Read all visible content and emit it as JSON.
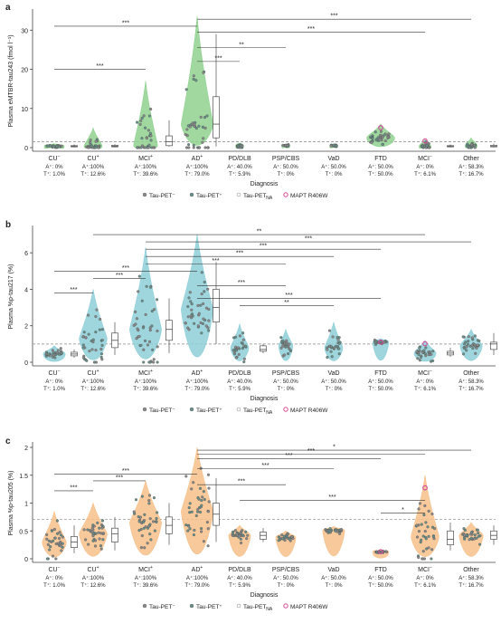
{
  "colors": {
    "green": "#8fd18f",
    "teal": "#8ecfd8",
    "orange": "#f6c08a",
    "point_grey": "#8a8a8a",
    "mapt": "#d4479a",
    "dashed": "#888888"
  },
  "x_title": "Diagnosis",
  "groups": [
    {
      "label": "CU",
      "sup": "−",
      "a_line": "A⁺: 0%",
      "t_line": "T⁺: 1.0%"
    },
    {
      "label": "CU",
      "sup": "+",
      "a_line": "A⁺:100%",
      "t_line": "T⁺: 12.6%"
    },
    {
      "label": "MCI",
      "sup": "+",
      "a_line": "A⁺:100%",
      "t_line": "T⁺: 39.6%"
    },
    {
      "label": "AD",
      "sup": "+",
      "a_line": "A⁺:100%",
      "t_line": "T⁺: 79.0%"
    },
    {
      "label": "PD/DLB",
      "sup": "",
      "a_line": "A⁺: 40.0%",
      "t_line": "T⁺: 5.9%"
    },
    {
      "label": "PSP/CBS",
      "sup": "",
      "a_line": "A⁺: 50.0%",
      "t_line": "T⁺: 0%"
    },
    {
      "label": "VaD",
      "sup": "",
      "a_line": "A⁺: 50.0%",
      "t_line": "T⁺: 0%"
    },
    {
      "label": "FTD",
      "sup": "",
      "a_line": "A⁺: 50.0%",
      "t_line": "T⁺: 50.0%"
    },
    {
      "label": "MCI",
      "sup": "−",
      "a_line": "A⁺: 0%",
      "t_line": "T⁺: 6.1%"
    },
    {
      "label": "Other",
      "sup": "",
      "a_line": "A⁺: 58.3%",
      "t_line": "T⁺: 16.7%"
    }
  ],
  "legend": [
    {
      "key": "neg",
      "text": "Tau-PET⁻"
    },
    {
      "key": "pos",
      "text": "Tau-PET⁺"
    },
    {
      "key": "na",
      "text": "Tau-PET",
      "sub": "NA"
    },
    {
      "key": "mapt",
      "text": "MAPT R406W"
    }
  ],
  "chart_data": [
    {
      "type": "violin",
      "panel": "a",
      "ylabel": "Plasma eMTBR-tau243 (fmol l⁻¹)",
      "ylim": [
        0,
        34
      ],
      "yticks": [
        0,
        10,
        20,
        30
      ],
      "threshold": 1.5,
      "fill": "green",
      "violins": [
        {
          "group": 0,
          "median": 0.3,
          "max": 1.0,
          "width": 0.5
        },
        {
          "group": 1,
          "median": 0.4,
          "max": 5.0,
          "width": 0.45
        },
        {
          "group": 2,
          "median": 0.6,
          "max": 17.0,
          "width": 0.6
        },
        {
          "group": 3,
          "median": 6.0,
          "max": 33.5,
          "width": 0.8
        },
        {
          "group": 4,
          "median": 0.4,
          "max": 1.2,
          "width": 0.2
        },
        {
          "group": 5,
          "median": 0.5,
          "max": 0.9,
          "width": 0.2
        },
        {
          "group": 6,
          "median": 0.5,
          "max": 0.9,
          "width": 0.2
        },
        {
          "group": 7,
          "median": 2.5,
          "max": 6.0,
          "width": 0.7
        },
        {
          "group": 8,
          "median": 0.3,
          "max": 2.0,
          "width": 0.3
        },
        {
          "group": 9,
          "median": 0.5,
          "max": 2.5,
          "width": 0.3
        }
      ],
      "boxes_na": [
        {
          "after": 0,
          "q1": 0.2,
          "med": 0.3,
          "q3": 0.5,
          "lo": 0.1,
          "hi": 0.8
        },
        {
          "after": 1,
          "q1": 0.2,
          "med": 0.35,
          "q3": 0.6,
          "lo": 0.1,
          "hi": 0.9
        },
        {
          "after": 2,
          "q1": 0.5,
          "med": 1.5,
          "q3": 3.0,
          "lo": 0.2,
          "hi": 7.0
        },
        {
          "after": 3,
          "q1": 2.5,
          "med": 6.0,
          "q3": 13.0,
          "lo": 0.3,
          "hi": 29.0
        },
        {
          "after": 8,
          "q1": 0.2,
          "med": 0.3,
          "q3": 0.5,
          "lo": 0.1,
          "hi": 0.8
        },
        {
          "after": 9,
          "q1": 0.2,
          "med": 0.3,
          "q3": 0.6,
          "lo": 0.1,
          "hi": 1.0
        }
      ],
      "brackets": [
        {
          "from": 0,
          "to": 3,
          "level": 31.0,
          "label": "***"
        },
        {
          "from": 3,
          "to": 9,
          "level": 32.8,
          "label": "***"
        },
        {
          "from": 3,
          "to": 8,
          "level": 29.5,
          "label": "***"
        },
        {
          "from": 3,
          "to": 5,
          "level": 25.5,
          "label": "**"
        },
        {
          "from": 3,
          "to": 4,
          "level": 22.0,
          "label": "***"
        },
        {
          "from": 0,
          "to": 2,
          "level": 20.0,
          "label": "***"
        }
      ]
    },
    {
      "type": "violin",
      "panel": "b",
      "ylabel": "Plasma %p-tau217 (%)",
      "ylim": [
        0,
        7.2
      ],
      "yticks": [
        0,
        2,
        4,
        6
      ],
      "threshold": 1.0,
      "fill": "teal",
      "violins": [
        {
          "group": 0,
          "median": 0.45,
          "max": 0.9,
          "width": 0.55
        },
        {
          "group": 1,
          "median": 1.3,
          "max": 4.0,
          "width": 0.7
        },
        {
          "group": 2,
          "median": 1.8,
          "max": 6.3,
          "width": 0.8
        },
        {
          "group": 3,
          "median": 2.9,
          "max": 7.0,
          "width": 0.8
        },
        {
          "group": 4,
          "median": 0.8,
          "max": 2.1,
          "width": 0.45
        },
        {
          "group": 5,
          "median": 0.9,
          "max": 1.8,
          "width": 0.35
        },
        {
          "group": 6,
          "median": 0.8,
          "max": 2.2,
          "width": 0.45
        },
        {
          "group": 7,
          "median": 1.1,
          "max": 1.3,
          "width": 0.4
        },
        {
          "group": 8,
          "median": 0.5,
          "max": 1.2,
          "width": 0.55
        },
        {
          "group": 9,
          "median": 0.9,
          "max": 1.8,
          "width": 0.55
        }
      ],
      "boxes_na": [
        {
          "after": 0,
          "q1": 0.35,
          "med": 0.45,
          "q3": 0.55,
          "lo": 0.25,
          "hi": 0.7
        },
        {
          "after": 1,
          "q1": 0.8,
          "med": 1.2,
          "q3": 1.6,
          "lo": 0.4,
          "hi": 2.2
        },
        {
          "after": 2,
          "q1": 1.2,
          "med": 1.8,
          "q3": 2.3,
          "lo": 0.5,
          "hi": 3.5
        },
        {
          "after": 3,
          "q1": 2.2,
          "med": 3.0,
          "q3": 4.0,
          "lo": 1.0,
          "hi": 5.5
        },
        {
          "after": 5,
          "q1": 0.6,
          "med": 0.7,
          "q3": 0.9,
          "lo": 0.5,
          "hi": 1.0
        },
        {
          "after": 8,
          "q1": 0.4,
          "med": 0.5,
          "q3": 0.6,
          "lo": 0.3,
          "hi": 0.8
        },
        {
          "after": 9,
          "q1": 0.7,
          "med": 1.0,
          "q3": 1.1,
          "lo": 0.4,
          "hi": 1.6
        }
      ],
      "brackets": [
        {
          "from": 1,
          "to": 8,
          "level": 7.0,
          "label": "**"
        },
        {
          "from": 2,
          "to": 9,
          "level": 6.6,
          "label": "***"
        },
        {
          "from": 2,
          "to": 7,
          "level": 6.2,
          "label": "***"
        },
        {
          "from": 2,
          "to": 6,
          "level": 5.8,
          "label": "***"
        },
        {
          "from": 2,
          "to": 5,
          "level": 5.4,
          "label": "***"
        },
        {
          "from": 0,
          "to": 3,
          "level": 5.0,
          "label": "***"
        },
        {
          "from": 1,
          "to": 2,
          "level": 4.6,
          "label": "***"
        },
        {
          "from": 3,
          "to": 5,
          "level": 4.2,
          "label": "***"
        },
        {
          "from": 0,
          "to": 1,
          "level": 3.8,
          "label": "***"
        },
        {
          "from": 3,
          "to": 7,
          "level": 3.5,
          "label": "***"
        },
        {
          "from": 4,
          "to": 6,
          "level": 3.1,
          "label": "**"
        }
      ]
    },
    {
      "type": "violin",
      "panel": "c",
      "ylabel": "Plasma %p-tau205 (%)",
      "ylim": [
        0,
        2.0
      ],
      "yticks": [
        0,
        0.5,
        1.0,
        1.5,
        2.0
      ],
      "threshold": 0.71,
      "fill": "orange",
      "violins": [
        {
          "group": 0,
          "median": 0.3,
          "max": 0.85,
          "width": 0.6
        },
        {
          "group": 1,
          "median": 0.45,
          "max": 1.0,
          "width": 0.7
        },
        {
          "group": 2,
          "median": 0.65,
          "max": 1.4,
          "width": 0.8
        },
        {
          "group": 3,
          "median": 0.85,
          "max": 2.0,
          "width": 0.8
        },
        {
          "group": 4,
          "median": 0.42,
          "max": 0.6,
          "width": 0.55
        },
        {
          "group": 5,
          "median": 0.38,
          "max": 0.5,
          "width": 0.5
        },
        {
          "group": 6,
          "median": 0.5,
          "max": 0.58,
          "width": 0.55
        },
        {
          "group": 7,
          "median": 0.12,
          "max": 0.15,
          "width": 0.4
        },
        {
          "group": 8,
          "median": 0.4,
          "max": 1.5,
          "width": 0.7
        },
        {
          "group": 9,
          "median": 0.42,
          "max": 0.65,
          "width": 0.6
        }
      ],
      "boxes_na": [
        {
          "after": 0,
          "q1": 0.2,
          "med": 0.3,
          "q3": 0.4,
          "lo": 0.1,
          "hi": 0.6
        },
        {
          "after": 1,
          "q1": 0.3,
          "med": 0.45,
          "q3": 0.55,
          "lo": 0.15,
          "hi": 0.75
        },
        {
          "after": 2,
          "q1": 0.45,
          "med": 0.6,
          "q3": 0.75,
          "lo": 0.25,
          "hi": 1.0
        },
        {
          "after": 3,
          "q1": 0.6,
          "med": 0.8,
          "q3": 1.0,
          "lo": 0.3,
          "hi": 1.45
        },
        {
          "after": 5,
          "q1": 0.35,
          "med": 0.42,
          "q3": 0.48,
          "lo": 0.3,
          "hi": 0.55
        },
        {
          "after": 8,
          "q1": 0.25,
          "med": 0.35,
          "q3": 0.5,
          "lo": 0.15,
          "hi": 0.65
        },
        {
          "after": 9,
          "q1": 0.35,
          "med": 0.42,
          "q3": 0.5,
          "lo": 0.25,
          "hi": 0.6
        }
      ],
      "brackets": [
        {
          "from": 3,
          "to": 9,
          "level": 1.95,
          "label": "*"
        },
        {
          "from": 3,
          "to": 8,
          "level": 1.88,
          "label": "***"
        },
        {
          "from": 3,
          "to": 7,
          "level": 1.8,
          "label": "***"
        },
        {
          "from": 0,
          "to": 3,
          "level": 1.52,
          "label": "***"
        },
        {
          "from": 3,
          "to": 5,
          "level": 1.33,
          "label": "***"
        },
        {
          "from": 1,
          "to": 2,
          "level": 1.4,
          "label": "***"
        },
        {
          "from": 0,
          "to": 1,
          "level": 1.22,
          "label": "***"
        },
        {
          "from": 3,
          "to": 6,
          "level": 1.62,
          "label": "***"
        },
        {
          "from": 4,
          "to": 8,
          "level": 1.05,
          "label": "***"
        },
        {
          "from": 7,
          "to": 8,
          "level": 0.82,
          "label": "*"
        }
      ]
    }
  ]
}
